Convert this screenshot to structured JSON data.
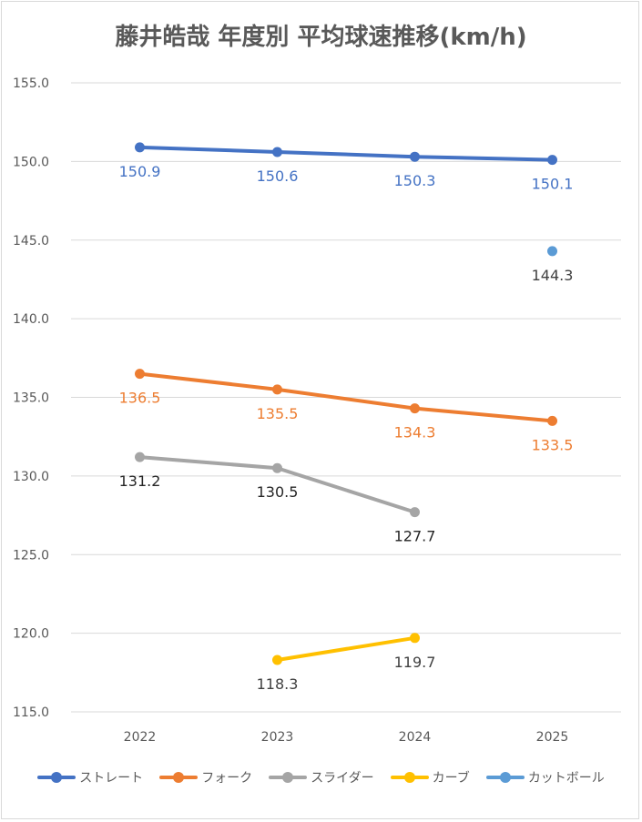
{
  "chart_data": {
    "type": "line",
    "title": "藤井皓哉 年度別 平均球速推移(km/h)",
    "categories": [
      "2022",
      "2023",
      "2024",
      "2025"
    ],
    "ylim": [
      115.0,
      155.0
    ],
    "yticks": [
      "155.0",
      "150.0",
      "145.0",
      "140.0",
      "135.0",
      "130.0",
      "125.0",
      "120.0",
      "115.0"
    ],
    "grid": true,
    "legend_position": "bottom",
    "series": [
      {
        "name": "ストレート",
        "color": "#4472c4",
        "values": [
          150.9,
          150.6,
          150.3,
          150.1
        ],
        "labels": [
          "150.9",
          "150.6",
          "150.3",
          "150.1"
        ],
        "label_color": "#4472c4",
        "label_pos": "below"
      },
      {
        "name": "フォーク",
        "color": "#ed7d31",
        "values": [
          136.5,
          135.5,
          134.3,
          133.5
        ],
        "labels": [
          "136.5",
          "135.5",
          "134.3",
          "133.5"
        ],
        "label_color": "#ed7d31",
        "label_pos": "below"
      },
      {
        "name": "スライダー",
        "color": "#a5a5a5",
        "values": [
          131.2,
          130.5,
          127.7,
          null
        ],
        "labels": [
          "131.2",
          "130.5",
          "127.7",
          null
        ],
        "label_color": "#262626",
        "label_pos": "below"
      },
      {
        "name": "カーブ",
        "color": "#ffc000",
        "values": [
          null,
          118.3,
          119.7,
          null
        ],
        "labels": [
          null,
          "118.3",
          "119.7",
          null
        ],
        "label_color": "#404040",
        "label_pos": "below"
      },
      {
        "name": "カットボール",
        "color": "#5b9bd5",
        "values": [
          null,
          null,
          null,
          144.3
        ],
        "labels": [
          null,
          null,
          null,
          "144.3"
        ],
        "label_color": "#404040",
        "label_pos": "below"
      }
    ]
  }
}
